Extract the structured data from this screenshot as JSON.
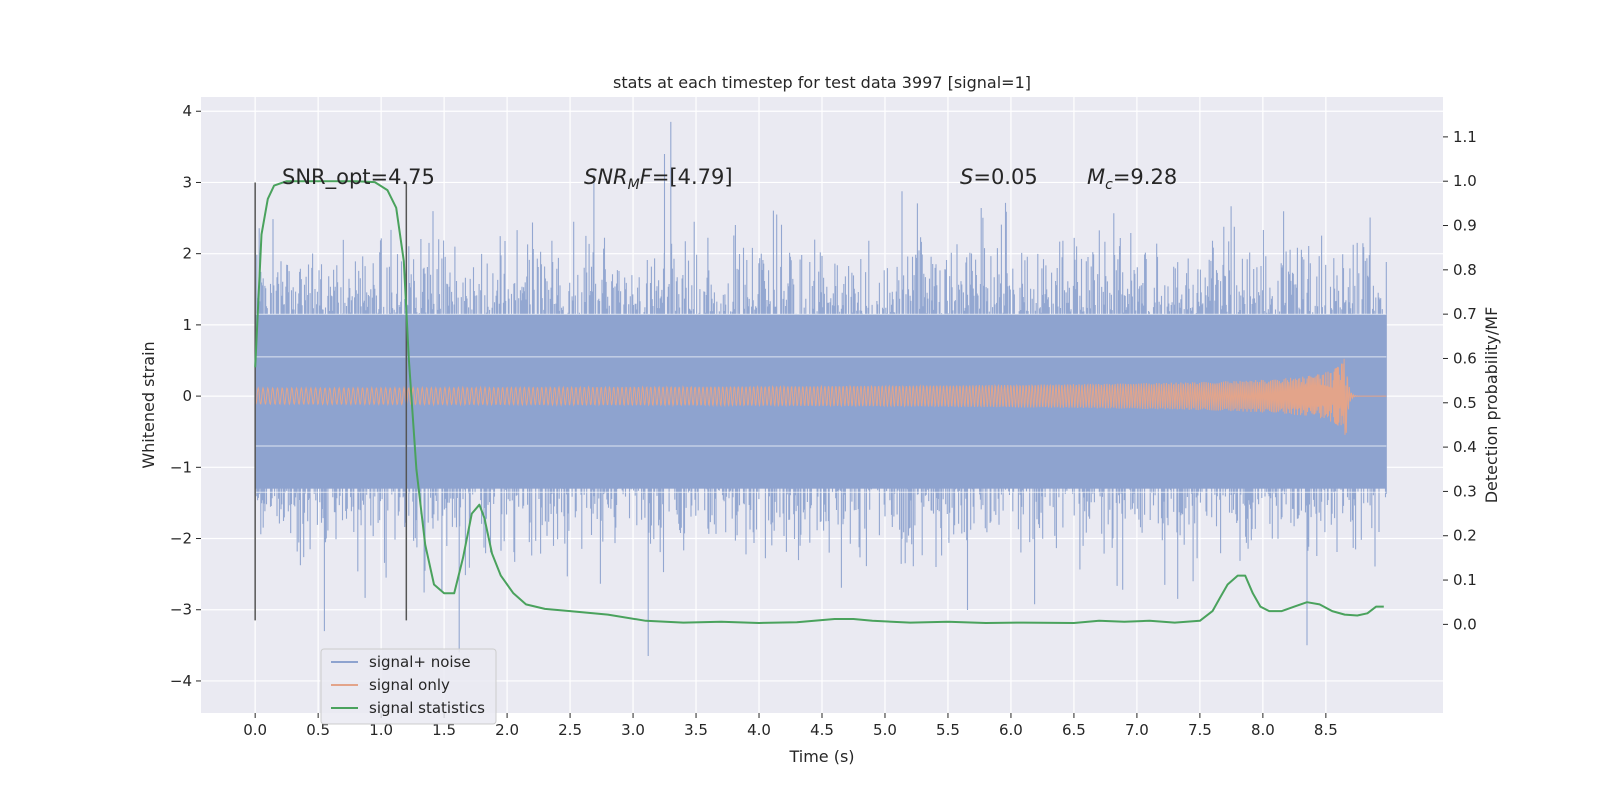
{
  "chart_data": {
    "type": "line",
    "title": "stats at each timestep for test data 3997 [signal=1]",
    "xlabel": "Time (s)",
    "ylabel_left": "Whitened strain",
    "ylabel_right": "Detection probability/MF",
    "xlim": [
      -0.43,
      9.43
    ],
    "ylim_left": [
      -4.45,
      4.2
    ],
    "ylim_right": [
      -0.2,
      1.19
    ],
    "grid": true,
    "legend_placement": "lower-left",
    "xticks": [
      "0.0",
      "0.5",
      "1.0",
      "1.5",
      "2.0",
      "2.5",
      "3.0",
      "3.5",
      "4.0",
      "4.5",
      "5.0",
      "5.5",
      "6.0",
      "6.5",
      "7.0",
      "7.5",
      "8.0",
      "8.5"
    ],
    "xtick_values": [
      0.0,
      0.5,
      1.0,
      1.5,
      2.0,
      2.5,
      3.0,
      3.5,
      4.0,
      4.5,
      5.0,
      5.5,
      6.0,
      6.5,
      7.0,
      7.5,
      8.0,
      8.5
    ],
    "yticks_left": [
      "4",
      "3",
      "2",
      "1",
      "0",
      "−1",
      "−2",
      "−3",
      "−4"
    ],
    "ytick_values_left": [
      4,
      3,
      2,
      1,
      0,
      -1,
      -2,
      -3,
      -4
    ],
    "yticks_right": [
      "1.1",
      "1.0",
      "0.9",
      "0.8",
      "0.7",
      "0.6",
      "0.5",
      "0.4",
      "0.3",
      "0.2",
      "0.1",
      "0.0"
    ],
    "ytick_values_right": [
      1.1,
      1.0,
      0.9,
      0.8,
      0.7,
      0.6,
      0.5,
      0.4,
      0.3,
      0.2,
      0.1,
      0.0
    ],
    "annotations": {
      "snr_opt": "SNR_opt=4.75",
      "snr_mf_label": "SNR",
      "snr_mf_sub": "M",
      "snr_mf_label2": "F",
      "snr_mf_value": "=[4.79]",
      "s_label": "S",
      "s_value": "=0.05",
      "mc_label": "M",
      "mc_sub": "c",
      "mc_value": "=9.28"
    },
    "vlines": [
      {
        "x": 0.0,
        "ymin": -3.15,
        "ymax": 3.0
      },
      {
        "x": 1.2,
        "ymin": -3.15,
        "ymax": 3.0
      }
    ],
    "series": [
      {
        "name": "signal+ noise",
        "color": "#8ea3cf",
        "axis": "left",
        "kind": "noise",
        "x_range": [
          0.0,
          8.98
        ],
        "typical_envelope": [
          -1.35,
          1.9
        ],
        "peak_max": 3.85,
        "peak_min": -3.65
      },
      {
        "name": "signal only",
        "color": "#e3a48a",
        "axis": "left",
        "kind": "chirp",
        "x_range": [
          0.0,
          8.98
        ],
        "merger_time": 8.66,
        "peak_amplitude": 0.62
      },
      {
        "name": "signal statistics",
        "color": "#4aa25d",
        "axis": "right",
        "x": [
          0.0,
          0.05,
          0.1,
          0.15,
          0.25,
          0.4,
          0.6,
          0.8,
          0.95,
          1.05,
          1.12,
          1.18,
          1.22,
          1.28,
          1.35,
          1.42,
          1.5,
          1.58,
          1.65,
          1.72,
          1.78,
          1.82,
          1.88,
          1.95,
          2.05,
          2.15,
          2.3,
          2.5,
          2.8,
          3.1,
          3.4,
          3.7,
          4.0,
          4.3,
          4.6,
          4.75,
          4.9,
          5.2,
          5.5,
          5.8,
          6.1,
          6.5,
          6.7,
          6.9,
          7.1,
          7.3,
          7.5,
          7.6,
          7.66,
          7.72,
          7.8,
          7.86,
          7.92,
          7.98,
          8.05,
          8.15,
          8.25,
          8.35,
          8.45,
          8.55,
          8.65,
          8.75,
          8.83,
          8.9,
          8.96
        ],
        "values": [
          0.58,
          0.88,
          0.96,
          0.99,
          1.0,
          1.0,
          1.0,
          1.0,
          0.998,
          0.98,
          0.94,
          0.82,
          0.6,
          0.35,
          0.18,
          0.09,
          0.07,
          0.07,
          0.15,
          0.25,
          0.27,
          0.24,
          0.16,
          0.11,
          0.07,
          0.045,
          0.035,
          0.03,
          0.022,
          0.008,
          0.004,
          0.006,
          0.003,
          0.005,
          0.012,
          0.012,
          0.008,
          0.004,
          0.006,
          0.003,
          0.004,
          0.003,
          0.008,
          0.006,
          0.008,
          0.004,
          0.008,
          0.03,
          0.06,
          0.09,
          0.11,
          0.11,
          0.07,
          0.04,
          0.03,
          0.03,
          0.04,
          0.05,
          0.045,
          0.03,
          0.022,
          0.02,
          0.025,
          0.04,
          0.04
        ]
      }
    ]
  }
}
